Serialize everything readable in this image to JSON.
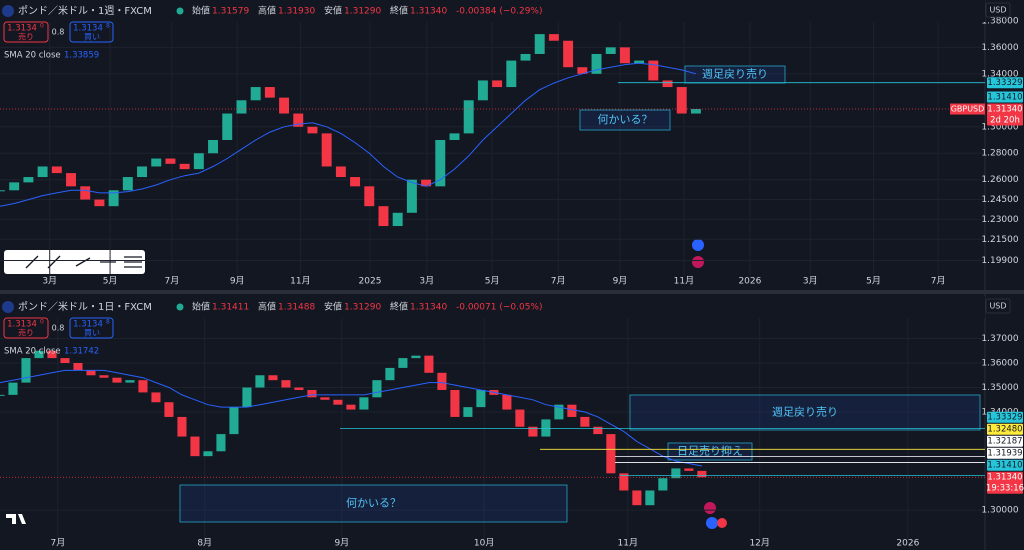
{
  "chart_data": [
    {
      "type": "candlestick",
      "title": "ポンド／米ドル・1週・FXCM",
      "quote": [
        {
          "label": "始値",
          "value": "1.31579"
        },
        {
          "label": "高値",
          "value": "1.31930"
        },
        {
          "label": "安値",
          "value": "1.31290"
        },
        {
          "label": "終値",
          "value": "1.31340"
        }
      ],
      "change": "-0.00384 (−0.29%)",
      "sell": {
        "price": "1.3134",
        "digit": "0",
        "label": "売り"
      },
      "spread": "0.8",
      "buy": {
        "price": "1.3134",
        "digit": "8",
        "label": "買い"
      },
      "indicator": {
        "name": "SMA 20 close",
        "value": "1.33859",
        "color": "#2962ff"
      },
      "currency": "USD",
      "up_color": "#22ab94",
      "down_color": "#f23645",
      "grid": true,
      "x": [
        0,
        2,
        4,
        6,
        8,
        10,
        12,
        14,
        16,
        18,
        20,
        22,
        24,
        26,
        28,
        30,
        32,
        34,
        36,
        38,
        40,
        42,
        44,
        46,
        48,
        50,
        52,
        54,
        56,
        58,
        60,
        62,
        64,
        66,
        68,
        70,
        72,
        74,
        76,
        78,
        80,
        82,
        84,
        86,
        88,
        90,
        92,
        94,
        96,
        98
      ],
      "values": [
        1.252,
        1.258,
        1.262,
        1.27,
        1.265,
        1.255,
        1.245,
        1.24,
        1.252,
        1.262,
        1.27,
        1.276,
        1.272,
        1.268,
        1.28,
        1.29,
        1.31,
        1.32,
        1.33,
        1.322,
        1.31,
        1.3,
        1.295,
        1.27,
        1.262,
        1.255,
        1.24,
        1.225,
        1.235,
        1.26,
        1.255,
        1.29,
        1.295,
        1.32,
        1.335,
        1.33,
        1.35,
        1.355,
        1.37,
        1.365,
        1.345,
        1.34,
        1.355,
        1.36,
        1.348,
        1.35,
        1.335,
        1.33,
        1.31,
        1.3134
      ],
      "sma": [
        1.24,
        1.242,
        1.245,
        1.248,
        1.25,
        1.252,
        1.252,
        1.25,
        1.25,
        1.251,
        1.253,
        1.256,
        1.26,
        1.263,
        1.265,
        1.27,
        1.276,
        1.283,
        1.29,
        1.296,
        1.3,
        1.302,
        1.303,
        1.3,
        1.295,
        1.288,
        1.28,
        1.27,
        1.262,
        1.258,
        1.255,
        1.26,
        1.268,
        1.278,
        1.29,
        1.3,
        1.31,
        1.32,
        1.328,
        1.333,
        1.337,
        1.34,
        1.343,
        1.345,
        1.347,
        1.348,
        1.347,
        1.345,
        1.343,
        1.34
      ],
      "xlim": [
        0,
        138
      ],
      "ylim": [
        1.188,
        1.392
      ],
      "xticks": [
        {
          "value": 7,
          "label": "3月"
        },
        {
          "value": 15.5,
          "label": "5月"
        },
        {
          "value": 24.2,
          "label": "7月"
        },
        {
          "value": 33.4,
          "label": "9月"
        },
        {
          "value": 42.3,
          "label": "11月"
        },
        {
          "value": 52.1,
          "label": "2025"
        },
        {
          "value": 60.1,
          "label": "3月"
        },
        {
          "value": 69.3,
          "label": "5月"
        },
        {
          "value": 78.6,
          "label": "7月"
        },
        {
          "value": 87.3,
          "label": "9月"
        },
        {
          "value": 96.3,
          "label": "11月"
        },
        {
          "value": 105.6,
          "label": "2026"
        },
        {
          "value": 114.1,
          "label": "3月"
        },
        {
          "value": 123,
          "label": "5月"
        },
        {
          "value": 132.1,
          "label": "7月"
        }
      ],
      "yticks": [
        {
          "value": 1.38,
          "label": "1.38000"
        },
        {
          "value": 1.36,
          "label": "1.36000"
        },
        {
          "value": 1.34,
          "label": "1.34000"
        },
        {
          "value": 1.3,
          "label": "1.30000"
        },
        {
          "value": 1.28,
          "label": "1.28000"
        },
        {
          "value": 1.26,
          "label": "1.26000"
        },
        {
          "value": 1.245,
          "label": "1.24500"
        },
        {
          "value": 1.23,
          "label": "1.23000"
        },
        {
          "value": 1.215,
          "label": "1.21500"
        },
        {
          "value": 1.199,
          "label": "1.19900"
        }
      ],
      "price_tags": [
        {
          "value": 1.33329,
          "label": "1.33329",
          "color": "#26c6da"
        },
        {
          "value": 1.3141,
          "label": "1.31410",
          "color": "#26c6da"
        },
        {
          "value": 1.3134,
          "label": "1.31340",
          "color": "#f23645",
          "symbol": "GBPUSD",
          "sub": "2d 20h"
        }
      ],
      "annotations": [
        "週足戻り売り",
        "何かいる？"
      ]
    },
    {
      "type": "candlestick",
      "title": "ポンド／米ドル・1日・FXCM",
      "quote": [
        {
          "label": "始値",
          "value": "1.31411"
        },
        {
          "label": "高値",
          "value": "1.31488"
        },
        {
          "label": "安値",
          "value": "1.31290"
        },
        {
          "label": "終値",
          "value": "1.31340"
        }
      ],
      "change": "-0.00071 (−0.05%)",
      "sell": {
        "price": "1.3134",
        "digit": "0",
        "label": "売り"
      },
      "spread": "0.8",
      "buy": {
        "price": "1.3134",
        "digit": "8",
        "label": "買い"
      },
      "indicator": {
        "name": "SMA 20 close",
        "value": "1.31742",
        "color": "#2962ff"
      },
      "currency": "USD",
      "up_color": "#22ab94",
      "down_color": "#f23645",
      "grid": true,
      "x": [
        0,
        2,
        4,
        6,
        8,
        10,
        12,
        14,
        16,
        18,
        20,
        22,
        24,
        26,
        28,
        30,
        32,
        34,
        36,
        38,
        40,
        42,
        44,
        46,
        48,
        50,
        52,
        54,
        56,
        58,
        60,
        62,
        64,
        66,
        68,
        70,
        72,
        74,
        76,
        78,
        80,
        82,
        84,
        86,
        88,
        90,
        92,
        94,
        96,
        98,
        100,
        102,
        104,
        106,
        108
      ],
      "values": [
        1.347,
        1.352,
        1.362,
        1.365,
        1.362,
        1.36,
        1.357,
        1.355,
        1.354,
        1.352,
        1.353,
        1.348,
        1.344,
        1.338,
        1.33,
        1.322,
        1.324,
        1.331,
        1.342,
        1.35,
        1.355,
        1.353,
        1.35,
        1.349,
        1.346,
        1.345,
        1.343,
        1.341,
        1.346,
        1.353,
        1.358,
        1.362,
        1.363,
        1.356,
        1.349,
        1.338,
        1.342,
        1.349,
        1.347,
        1.341,
        1.334,
        1.33,
        1.337,
        1.343,
        1.338,
        1.334,
        1.331,
        1.315,
        1.308,
        1.302,
        1.308,
        1.313,
        1.317,
        1.316,
        1.3134
      ],
      "sma": [
        1.352,
        1.353,
        1.354,
        1.355,
        1.356,
        1.357,
        1.357,
        1.357,
        1.357,
        1.356,
        1.355,
        1.354,
        1.352,
        1.35,
        1.347,
        1.345,
        1.343,
        1.342,
        1.342,
        1.342,
        1.343,
        1.344,
        1.345,
        1.346,
        1.347,
        1.347,
        1.347,
        1.347,
        1.347,
        1.348,
        1.349,
        1.35,
        1.351,
        1.352,
        1.352,
        1.351,
        1.35,
        1.349,
        1.348,
        1.347,
        1.346,
        1.345,
        1.343,
        1.342,
        1.341,
        1.34,
        1.338,
        1.335,
        1.332,
        1.328,
        1.325,
        1.322,
        1.32,
        1.319,
        1.318
      ],
      "xlim": [
        0,
        150.8
      ],
      "ylim": [
        1.2878,
        1.3857
      ],
      "xticks": [
        {
          "value": 8.9,
          "label": "7月"
        },
        {
          "value": 31.5,
          "label": "8月"
        },
        {
          "value": 52.6,
          "label": "9月"
        },
        {
          "value": 74.5,
          "label": "10月"
        },
        {
          "value": 96.6,
          "label": "11月"
        },
        {
          "value": 116.9,
          "label": "12月"
        },
        {
          "value": 139.7,
          "label": "2026"
        }
      ],
      "yticks": [
        {
          "value": 1.37,
          "label": "1.37000"
        },
        {
          "value": 1.36,
          "label": "1.36000"
        },
        {
          "value": 1.35,
          "label": "1.35000"
        },
        {
          "value": 1.34,
          "label": "1.34000"
        },
        {
          "value": 1.3,
          "label": "1.30000"
        }
      ],
      "price_tags": [
        {
          "value": 1.33329,
          "label": "1.33329",
          "color": "#26c6da"
        },
        {
          "value": 1.3248,
          "label": "1.32480",
          "color": "#ffeb3b"
        },
        {
          "value": 1.32187,
          "label": "1.32187",
          "color": "#ffffff"
        },
        {
          "value": 1.31939,
          "label": "1.31939",
          "color": "#ffffff"
        },
        {
          "value": 1.3141,
          "label": "1.31410",
          "color": "#26c6da"
        },
        {
          "value": 1.3134,
          "label": "1.31340",
          "color": "#f23645",
          "sub": "19:33:16"
        }
      ],
      "annotations": [
        "週足戻り売り",
        "日足売り抑え",
        "何かいる？"
      ]
    }
  ]
}
